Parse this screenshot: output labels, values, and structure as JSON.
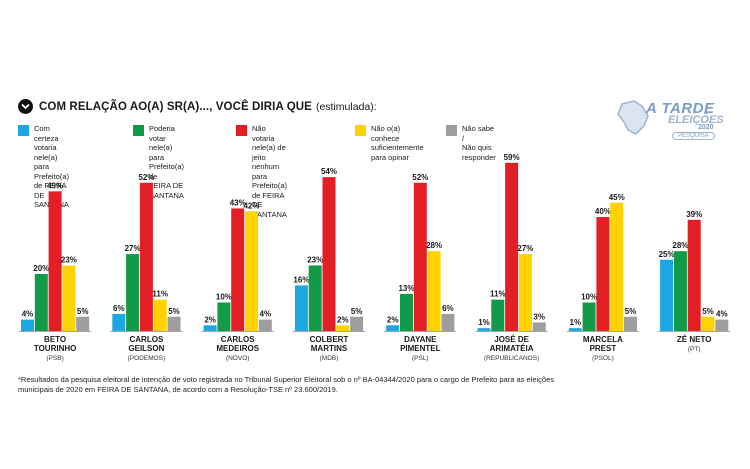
{
  "header": {
    "title": "COM RELAÇÃO AO(A) SR(A)..., VOCÊ DIRIA QUE",
    "subtitle": "(estimulada):"
  },
  "logo": {
    "line1": "A TARDE",
    "line2": "ELEIÇÕES",
    "line3": "2020",
    "line4": "PESQUISA"
  },
  "legend": [
    {
      "label": "Com certeza votaria\nnele(a) para Prefeito(a)\nde FEIRA DE SANTANA",
      "color": "#1ca7e0"
    },
    {
      "label": "Poderia votar nele(a)\npara Prefeito(a) de\nFEIRA DE SANTANA",
      "color": "#139a48"
    },
    {
      "label": "Não votaria nele(a) de jeito\nnenhum para Prefeito(a)\nde FEIRA DE SANTANA",
      "color": "#e31e24"
    },
    {
      "label": "Não o(a) conhece\nsuficientemente\npara opinar",
      "color": "#ffd200"
    },
    {
      "label": "Não sabe /\nNão quis responder",
      "color": "#9e9e9e"
    }
  ],
  "chart_data": {
    "type": "bar",
    "categories": [
      {
        "name": [
          "BETO",
          "TOURINHO"
        ],
        "party": "(PSB)"
      },
      {
        "name": [
          "CARLOS",
          "GEILSON"
        ],
        "party": "(PODEMOS)"
      },
      {
        "name": [
          "CARLOS",
          "MEDEIROS"
        ],
        "party": "(NOVO)"
      },
      {
        "name": [
          "COLBERT",
          "MARTINS"
        ],
        "party": "(MDB)"
      },
      {
        "name": [
          "DAYANE",
          "PIMENTEL"
        ],
        "party": "(PSL)"
      },
      {
        "name": [
          "JOSÉ DE",
          "ARIMATÉIA"
        ],
        "party": "(REPUBLICANOS)"
      },
      {
        "name": [
          "MARCELA",
          "PREST"
        ],
        "party": "(PSOL)"
      },
      {
        "name": [
          "ZÉ NETO"
        ],
        "party": "(PT)"
      }
    ],
    "series": [
      {
        "name": "Com certeza votaria nele(a) para Prefeito(a) de FEIRA DE SANTANA",
        "values": [
          4,
          6,
          2,
          16,
          2,
          1,
          1,
          25
        ]
      },
      {
        "name": "Poderia votar nele(a) para Prefeito(a) de FEIRA DE SANTANA",
        "values": [
          20,
          27,
          10,
          23,
          13,
          11,
          10,
          28
        ]
      },
      {
        "name": "Não votaria nele(a) de jeito nenhum para Prefeito(a) de FEIRA DE SANTANA",
        "values": [
          49,
          52,
          43,
          54,
          52,
          59,
          40,
          39
        ]
      },
      {
        "name": "Não o(a) conhece suficientemente para opinar",
        "values": [
          23,
          11,
          42,
          2,
          28,
          27,
          45,
          5
        ]
      },
      {
        "name": "Não sabe / Não quis responder",
        "values": [
          5,
          5,
          4,
          5,
          6,
          3,
          5,
          4
        ]
      }
    ],
    "value_suffix": "%",
    "ylim": [
      0,
      60
    ],
    "grid": false
  },
  "footnote": "*Resultados da pesquisa eleitoral de intenção de voto registrada no Tribunal Superior Eleitoral sob o nº BA-04344/2020 para o cargo de Prefeito para as eleições municipais de 2020 em FEIRA DE SANTANA, de acordo com a Resolução-TSE nº 23.600/2019."
}
